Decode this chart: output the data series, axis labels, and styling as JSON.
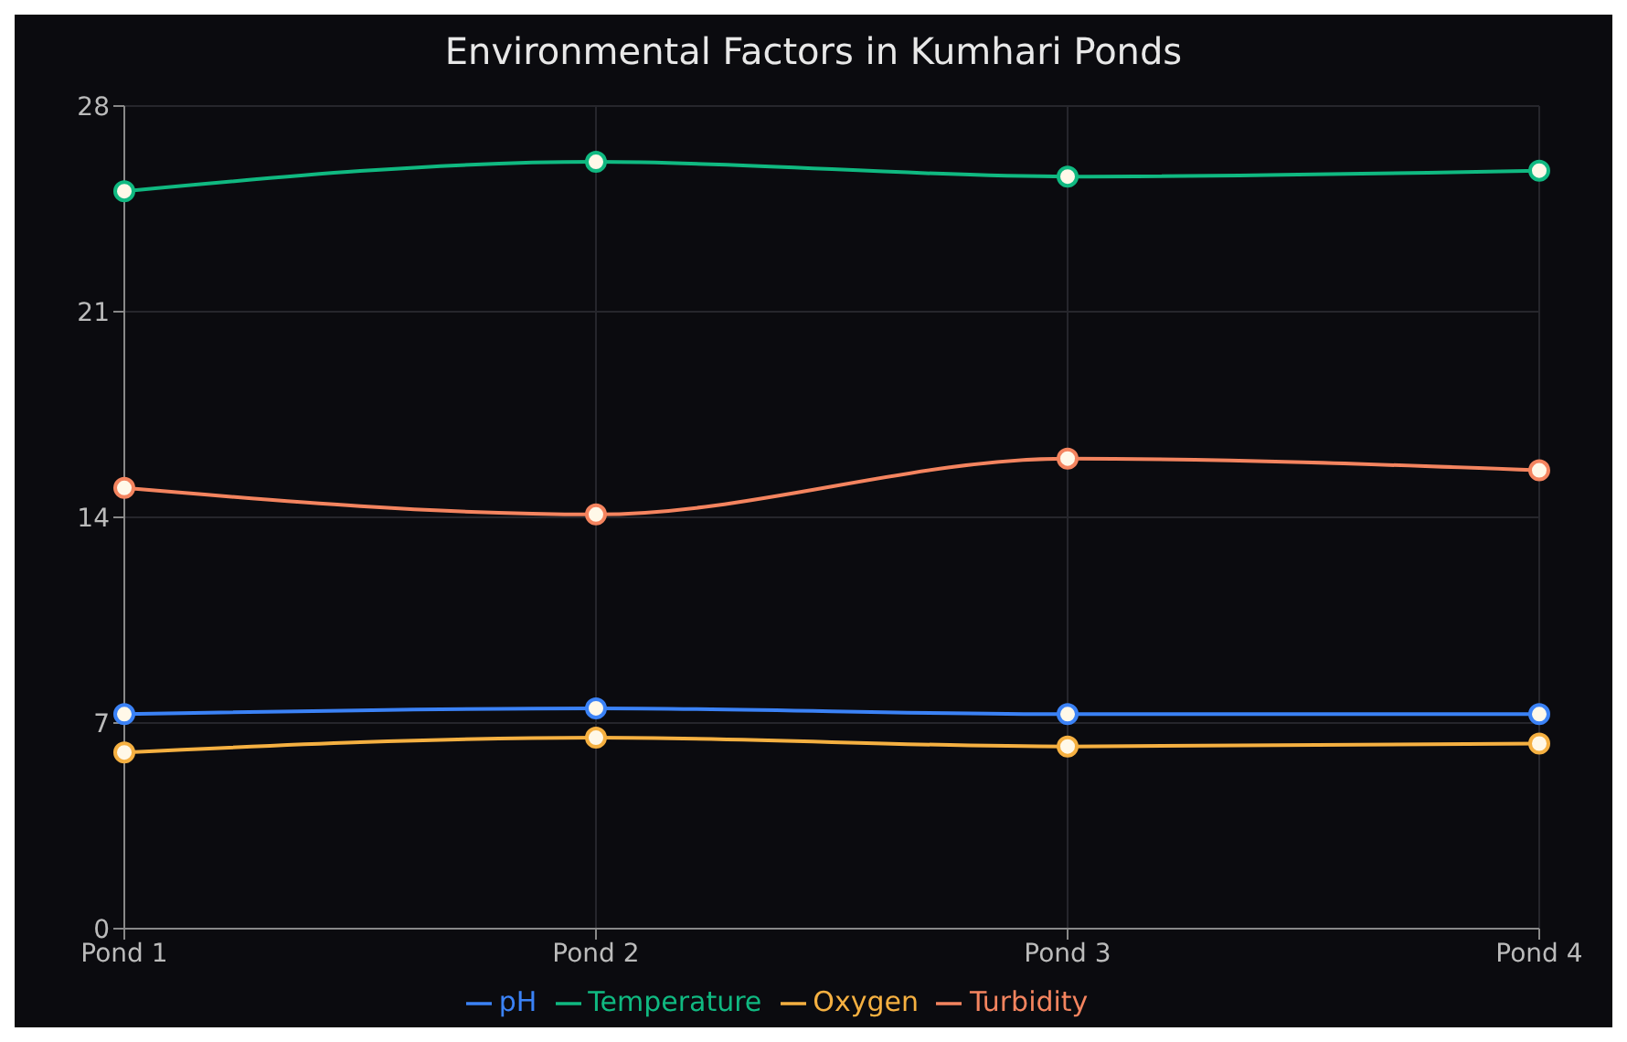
{
  "chart_data": {
    "type": "line",
    "title": "Environmental Factors in Kumhari Ponds",
    "categories": [
      "Pond 1",
      "Pond 2",
      "Pond 3",
      "Pond 4"
    ],
    "series": [
      {
        "name": "pH",
        "color": "#3b82f6",
        "values": [
          7.3,
          7.5,
          7.3,
          7.3
        ]
      },
      {
        "name": "Temperature",
        "color": "#10b981",
        "values": [
          25.1,
          26.1,
          25.6,
          25.8
        ]
      },
      {
        "name": "Oxygen",
        "color": "#f5b041",
        "values": [
          6.0,
          6.5,
          6.2,
          6.3
        ]
      },
      {
        "name": "Turbidity",
        "color": "#f4845f",
        "values": [
          15.0,
          14.1,
          16.0,
          15.6
        ]
      }
    ],
    "ylim": [
      0,
      28
    ],
    "yticks": [
      0,
      7,
      14,
      21,
      28
    ],
    "grid": true,
    "legend": "bottom",
    "marker": "circle"
  }
}
